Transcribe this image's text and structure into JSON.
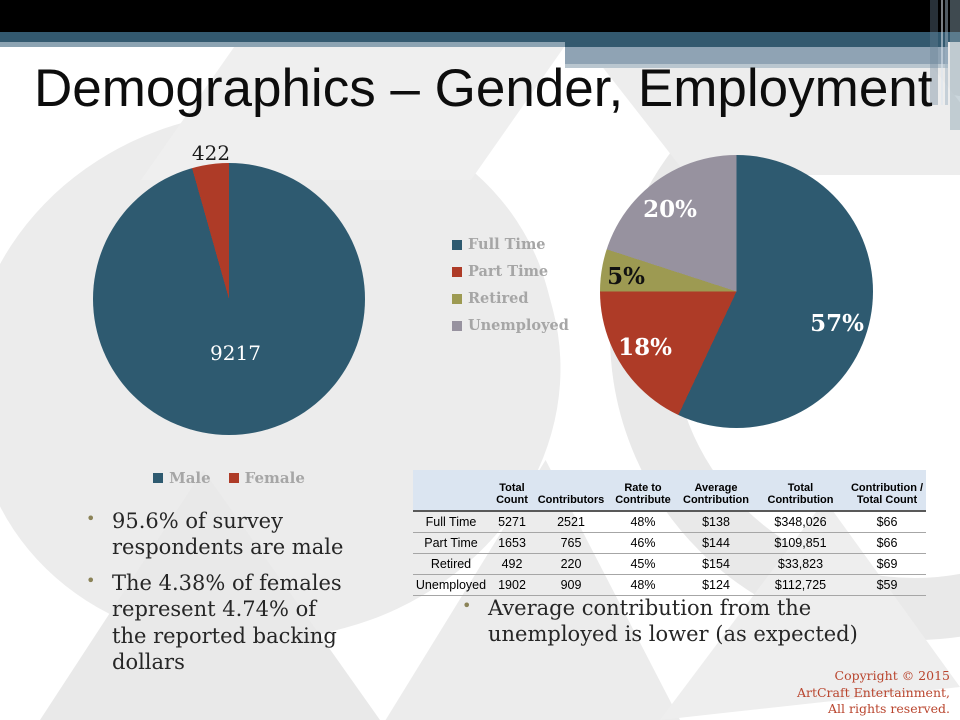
{
  "title": "Demographics – Gender, Employment",
  "chart_data": [
    {
      "type": "pie",
      "name": "gender-distribution",
      "categories": [
        "Male",
        "Female"
      ],
      "values": [
        9217,
        422
      ],
      "colors": [
        "#2E5A70",
        "#AE3B27"
      ],
      "data_labels": [
        "9217",
        "422"
      ],
      "legend_position": "bottom"
    },
    {
      "type": "pie",
      "name": "employment-distribution",
      "categories": [
        "Full Time",
        "Part Time",
        "Retired",
        "Unemployed"
      ],
      "values": [
        57,
        18,
        5,
        20
      ],
      "colors": [
        "#2E5A70",
        "#AE3B27",
        "#9D9A52",
        "#97929F"
      ],
      "data_labels": [
        "57%",
        "18%",
        "5%",
        "20%"
      ],
      "legend_position": "left"
    },
    {
      "type": "table",
      "headers": [
        "",
        "Total Count",
        "Contributors",
        "Rate to Contribute",
        "Average Contribution",
        "Total Contribution",
        "Contribution / Total Count"
      ],
      "rows": [
        [
          "Full Time",
          "5271",
          "2521",
          "48%",
          "$138",
          "$348,026",
          "$66"
        ],
        [
          "Part Time",
          "1653",
          "765",
          "46%",
          "$144",
          "$109,851",
          "$66"
        ],
        [
          "Retired",
          "492",
          "220",
          "45%",
          "$154",
          "$33,823",
          "$69"
        ],
        [
          "Unemployed",
          "1902",
          "909",
          "48%",
          "$124",
          "$112,725",
          "$59"
        ]
      ]
    }
  ],
  "bullets_left": [
    "95.6% of survey respondents are male",
    "The 4.38% of females represent 4.74% of the reported backing dollars"
  ],
  "bullets_right": [
    "Average contribution from the unemployed is lower (as expected)"
  ],
  "copyright": [
    "Copyright © 2015",
    "ArtCraft Entertainment,",
    "All rights reserved."
  ],
  "colors": {
    "header_black": "#000000",
    "header_slate": "#33596F",
    "header_light_blue": "#8FA3B4",
    "table_header_bg": "#DBE5F1",
    "legend_text": "#A6A6A6",
    "copyright_red": "#B9452E"
  }
}
